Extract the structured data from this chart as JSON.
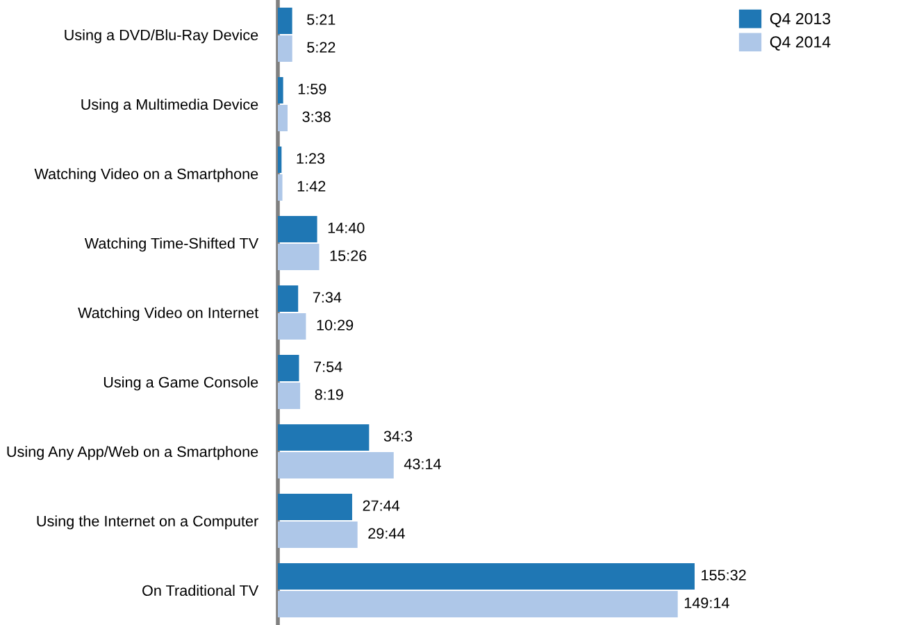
{
  "chart_data": {
    "type": "bar",
    "orientation": "horizontal",
    "categories": [
      "Using a DVD/Blu-Ray Device",
      "Using a Multimedia Device",
      "Watching Video on a Smartphone",
      "Watching Time-Shifted TV",
      "Watching Video on Internet",
      "Using a Game Console",
      "Using Any App/Web on a Smartphone",
      "Using the Internet on a Computer",
      "On Traditional TV"
    ],
    "series": [
      {
        "name": "Q4 2013",
        "color": "#1f77b4",
        "values": [
          5.35,
          1.98,
          1.38,
          14.67,
          7.57,
          7.9,
          34.05,
          27.73,
          155.53
        ],
        "value_labels": [
          "5:21",
          "1:59",
          "1:23",
          "14:40",
          "7:34",
          "7:54",
          "34:3",
          "27:44",
          "155:32"
        ]
      },
      {
        "name": "Q4 2014",
        "color": "#aec7e8",
        "values": [
          5.37,
          3.63,
          1.7,
          15.43,
          10.48,
          8.32,
          43.23,
          29.73,
          149.23
        ],
        "value_labels": [
          "5:22",
          "3:38",
          "1:42",
          "15:26",
          "10:29",
          "8:19",
          "43:14",
          "29:44",
          "149:14"
        ]
      }
    ],
    "legend": "top right",
    "tick_labels": "y"
  }
}
